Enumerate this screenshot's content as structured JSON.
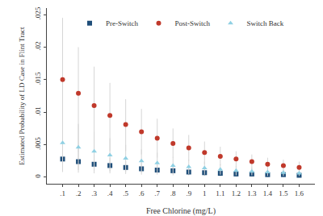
{
  "chart_data": {
    "type": "scatter",
    "x_label": "Free Chlorine (mg/L)",
    "y_label": "Estimated Probability of LD Case in Flint Tract",
    "x": [
      0.1,
      0.2,
      0.3,
      0.4,
      0.5,
      0.6,
      0.7,
      0.8,
      0.9,
      1,
      1.1,
      1.2,
      1.3,
      1.4,
      1.5,
      1.6
    ],
    "series": [
      {
        "name": "Pre-Switch",
        "color": "#1f4e79",
        "marker": "square",
        "values": [
          0.0028,
          0.0024,
          0.002,
          0.0018,
          0.0015,
          0.0013,
          0.0011,
          0.001,
          0.0008,
          0.0007,
          0.0006,
          0.0005,
          0.0005,
          0.0004,
          0.0004,
          0.0003
        ],
        "lower": [
          0.0008,
          0.0007,
          0.0006,
          0.0006,
          0.0005,
          0.0004,
          0.0004,
          0.0003,
          0.0003,
          0.0002,
          0.0002,
          0.0002,
          0.0001,
          0.0001,
          0.0001,
          0.0001
        ],
        "upper": [
          0.0048,
          0.0041,
          0.0035,
          0.003,
          0.0025,
          0.0022,
          0.0019,
          0.0017,
          0.0014,
          0.0012,
          0.001,
          0.0009,
          0.0008,
          0.0007,
          0.0006,
          0.0005
        ]
      },
      {
        "name": "Post-Switch",
        "color": "#c0392b",
        "marker": "circle",
        "values": [
          0.015,
          0.0129,
          0.011,
          0.0095,
          0.0081,
          0.007,
          0.006,
          0.0052,
          0.0045,
          0.0038,
          0.0032,
          0.0028,
          0.0024,
          0.002,
          0.0018,
          0.0015
        ],
        "lower": [
          0.004,
          0.004,
          0.004,
          0.004,
          0.004,
          0.0035,
          0.003,
          0.003,
          0.0025,
          0.002,
          0.0018,
          0.0015,
          0.0012,
          0.001,
          0.0008,
          0.0006
        ],
        "upper": [
          0.0245,
          0.02,
          0.017,
          0.0145,
          0.012,
          0.0105,
          0.009,
          0.0075,
          0.0065,
          0.0055,
          0.0047,
          0.004,
          0.0035,
          0.003,
          0.0027,
          0.0024
        ]
      },
      {
        "name": "Switch Back",
        "color": "#8fd0e3",
        "marker": "triangle-up",
        "values": [
          0.0053,
          0.0046,
          0.004,
          0.0034,
          0.0029,
          0.0025,
          0.0022,
          0.0018,
          0.0016,
          0.0014,
          0.0012,
          0.001,
          0.0009,
          0.0008,
          0.0007,
          0.0006
        ],
        "lower": [
          0.0012,
          0.0011,
          0.001,
          0.0009,
          0.0008,
          0.0007,
          0.0006,
          0.0005,
          0.0005,
          0.0004,
          0.0004,
          0.0003,
          0.0003,
          0.0002,
          0.0002,
          0.0002
        ],
        "upper": [
          0.0095,
          0.0082,
          0.007,
          0.006,
          0.005,
          0.0043,
          0.0038,
          0.0031,
          0.0027,
          0.0024,
          0.002,
          0.0017,
          0.0015,
          0.0014,
          0.0012,
          0.001
        ]
      }
    ],
    "xlim": [
      0,
      1.7
    ],
    "xticks": [
      {
        "value": 0.1,
        "label": ".1"
      },
      {
        "value": 0.2,
        "label": ".2"
      },
      {
        "value": 0.3,
        "label": ".3"
      },
      {
        "value": 0.4,
        "label": ".4"
      },
      {
        "value": 0.5,
        "label": ".5"
      },
      {
        "value": 0.6,
        "label": ".6"
      },
      {
        "value": 0.7,
        "label": ".7"
      },
      {
        "value": 0.8,
        "label": ".8"
      },
      {
        "value": 0.9,
        "label": ".9"
      },
      1,
      1.1,
      1.2,
      1.3,
      1.4,
      1.5,
      1.6
    ],
    "ylim": [
      -0.001,
      0.026
    ],
    "yticks": [
      0,
      {
        "value": 0.005,
        "label": ".005"
      },
      {
        "value": 0.01,
        "label": ".01"
      },
      {
        "value": 0.015,
        "label": ".015"
      },
      {
        "value": 0.02,
        "label": ".02"
      },
      {
        "value": 0.025,
        "label": ".025"
      }
    ],
    "legend": "top",
    "grid": false
  }
}
